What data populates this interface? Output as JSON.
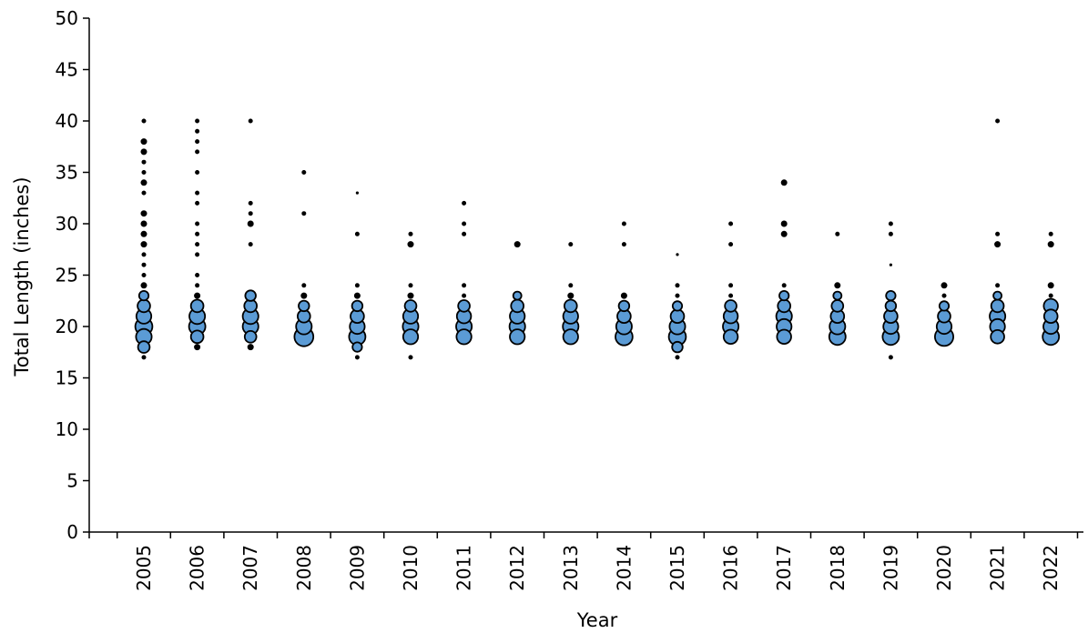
{
  "chart_data": {
    "type": "scatter",
    "title": "",
    "xlabel": "Year",
    "ylabel": "Total Length (inches)",
    "ylim": [
      0,
      50
    ],
    "yticks": [
      0,
      5,
      10,
      15,
      20,
      25,
      30,
      35,
      40,
      45,
      50
    ],
    "categories": [
      "2005",
      "2006",
      "2007",
      "2008",
      "2009",
      "2010",
      "2011",
      "2012",
      "2013",
      "2014",
      "2015",
      "2016",
      "2017",
      "2018",
      "2019",
      "2020",
      "2021",
      "2022"
    ],
    "grid": false,
    "legend": "none",
    "marker_fill": "#5b9bd5",
    "marker_stroke": "#000000",
    "points": [
      [
        2005,
        17,
        1
      ],
      [
        2005,
        18,
        6
      ],
      [
        2005,
        19,
        11
      ],
      [
        2005,
        20,
        13
      ],
      [
        2005,
        21,
        10
      ],
      [
        2005,
        22,
        7
      ],
      [
        2005,
        23,
        4
      ],
      [
        2005,
        24,
        2
      ],
      [
        2005,
        25,
        1
      ],
      [
        2005,
        26,
        1
      ],
      [
        2005,
        27,
        1
      ],
      [
        2005,
        28,
        2
      ],
      [
        2005,
        29,
        2
      ],
      [
        2005,
        30,
        2
      ],
      [
        2005,
        31,
        2
      ],
      [
        2005,
        33,
        1
      ],
      [
        2005,
        34,
        2
      ],
      [
        2005,
        35,
        1
      ],
      [
        2005,
        36,
        1
      ],
      [
        2005,
        37,
        2
      ],
      [
        2005,
        38,
        2
      ],
      [
        2005,
        40,
        1
      ],
      [
        2006,
        18,
        2
      ],
      [
        2006,
        19,
        7
      ],
      [
        2006,
        20,
        12
      ],
      [
        2006,
        21,
        11
      ],
      [
        2006,
        22,
        7
      ],
      [
        2006,
        23,
        2
      ],
      [
        2006,
        24,
        1
      ],
      [
        2006,
        25,
        1
      ],
      [
        2006,
        27,
        1
      ],
      [
        2006,
        28,
        1
      ],
      [
        2006,
        29,
        1
      ],
      [
        2006,
        30,
        1
      ],
      [
        2006,
        32,
        1
      ],
      [
        2006,
        33,
        1
      ],
      [
        2006,
        35,
        1
      ],
      [
        2006,
        37,
        1
      ],
      [
        2006,
        38,
        1
      ],
      [
        2006,
        39,
        1
      ],
      [
        2006,
        40,
        1
      ],
      [
        2007,
        18,
        2
      ],
      [
        2007,
        19,
        6
      ],
      [
        2007,
        20,
        11
      ],
      [
        2007,
        21,
        11
      ],
      [
        2007,
        22,
        7
      ],
      [
        2007,
        23,
        5
      ],
      [
        2007,
        28,
        1
      ],
      [
        2007,
        30,
        2
      ],
      [
        2007,
        31,
        1
      ],
      [
        2007,
        32,
        1
      ],
      [
        2007,
        40,
        1
      ],
      [
        2008,
        19,
        16
      ],
      [
        2008,
        20,
        11
      ],
      [
        2008,
        21,
        7
      ],
      [
        2008,
        22,
        5
      ],
      [
        2008,
        23,
        2
      ],
      [
        2008,
        24,
        1
      ],
      [
        2008,
        31,
        1
      ],
      [
        2008,
        35,
        1
      ],
      [
        2009,
        17,
        1
      ],
      [
        2009,
        18,
        4
      ],
      [
        2009,
        19,
        12
      ],
      [
        2009,
        20,
        10
      ],
      [
        2009,
        21,
        8
      ],
      [
        2009,
        22,
        5
      ],
      [
        2009,
        23,
        2
      ],
      [
        2009,
        24,
        1
      ],
      [
        2009,
        29,
        1
      ],
      [
        2009,
        33,
        0.5
      ],
      [
        2010,
        17,
        1
      ],
      [
        2010,
        19,
        10
      ],
      [
        2010,
        20,
        11
      ],
      [
        2010,
        21,
        10
      ],
      [
        2010,
        22,
        6
      ],
      [
        2010,
        23,
        2
      ],
      [
        2010,
        24,
        1
      ],
      [
        2010,
        28,
        2
      ],
      [
        2010,
        29,
        1
      ],
      [
        2011,
        19,
        10
      ],
      [
        2011,
        20,
        11
      ],
      [
        2011,
        21,
        9
      ],
      [
        2011,
        22,
        6
      ],
      [
        2011,
        23,
        1
      ],
      [
        2011,
        24,
        1
      ],
      [
        2011,
        29,
        1
      ],
      [
        2011,
        30,
        1
      ],
      [
        2011,
        32,
        1
      ],
      [
        2012,
        19,
        10
      ],
      [
        2012,
        20,
        11
      ],
      [
        2012,
        21,
        10
      ],
      [
        2012,
        22,
        7
      ],
      [
        2012,
        23,
        3
      ],
      [
        2012,
        28,
        2
      ],
      [
        2013,
        19,
        10
      ],
      [
        2013,
        20,
        11
      ],
      [
        2013,
        21,
        10
      ],
      [
        2013,
        22,
        7
      ],
      [
        2013,
        23,
        2
      ],
      [
        2013,
        24,
        1
      ],
      [
        2013,
        28,
        1
      ],
      [
        2014,
        19,
        13
      ],
      [
        2014,
        20,
        11
      ],
      [
        2014,
        21,
        8
      ],
      [
        2014,
        22,
        5
      ],
      [
        2014,
        23,
        2
      ],
      [
        2014,
        28,
        1
      ],
      [
        2014,
        30,
        1
      ],
      [
        2015,
        17,
        1
      ],
      [
        2015,
        18,
        5
      ],
      [
        2015,
        19,
        13
      ],
      [
        2015,
        20,
        11
      ],
      [
        2015,
        21,
        8
      ],
      [
        2015,
        22,
        4
      ],
      [
        2015,
        23,
        1
      ],
      [
        2015,
        24,
        1
      ],
      [
        2015,
        27,
        0.5
      ],
      [
        2016,
        19,
        9
      ],
      [
        2016,
        20,
        11
      ],
      [
        2016,
        21,
        9
      ],
      [
        2016,
        22,
        6
      ],
      [
        2016,
        23,
        1
      ],
      [
        2016,
        24,
        1
      ],
      [
        2016,
        28,
        1
      ],
      [
        2016,
        30,
        1
      ],
      [
        2017,
        19,
        9
      ],
      [
        2017,
        20,
        10
      ],
      [
        2017,
        21,
        11
      ],
      [
        2017,
        22,
        7
      ],
      [
        2017,
        23,
        4
      ],
      [
        2017,
        24,
        1
      ],
      [
        2017,
        29,
        2
      ],
      [
        2017,
        30,
        2
      ],
      [
        2017,
        34,
        2
      ],
      [
        2018,
        19,
        12
      ],
      [
        2018,
        20,
        11
      ],
      [
        2018,
        21,
        8
      ],
      [
        2018,
        22,
        6
      ],
      [
        2018,
        23,
        3
      ],
      [
        2018,
        24,
        2
      ],
      [
        2018,
        29,
        1
      ],
      [
        2019,
        17,
        1
      ],
      [
        2019,
        19,
        12
      ],
      [
        2019,
        20,
        10
      ],
      [
        2019,
        21,
        8
      ],
      [
        2019,
        22,
        5
      ],
      [
        2019,
        23,
        4
      ],
      [
        2019,
        26,
        0.5
      ],
      [
        2019,
        29,
        1
      ],
      [
        2019,
        30,
        1
      ],
      [
        2020,
        19,
        15
      ],
      [
        2020,
        20,
        10
      ],
      [
        2020,
        21,
        7
      ],
      [
        2020,
        22,
        4
      ],
      [
        2020,
        23,
        1
      ],
      [
        2020,
        24,
        2
      ],
      [
        2021,
        19,
        8
      ],
      [
        2021,
        20,
        10
      ],
      [
        2021,
        21,
        11
      ],
      [
        2021,
        22,
        7
      ],
      [
        2021,
        23,
        3
      ],
      [
        2021,
        24,
        1
      ],
      [
        2021,
        28,
        2
      ],
      [
        2021,
        29,
        1
      ],
      [
        2021,
        40,
        1
      ],
      [
        2022,
        19,
        12
      ],
      [
        2022,
        20,
        10
      ],
      [
        2022,
        21,
        8
      ],
      [
        2022,
        22,
        9
      ],
      [
        2022,
        23,
        1
      ],
      [
        2022,
        24,
        2
      ],
      [
        2022,
        28,
        2
      ],
      [
        2022,
        29,
        1
      ]
    ]
  }
}
